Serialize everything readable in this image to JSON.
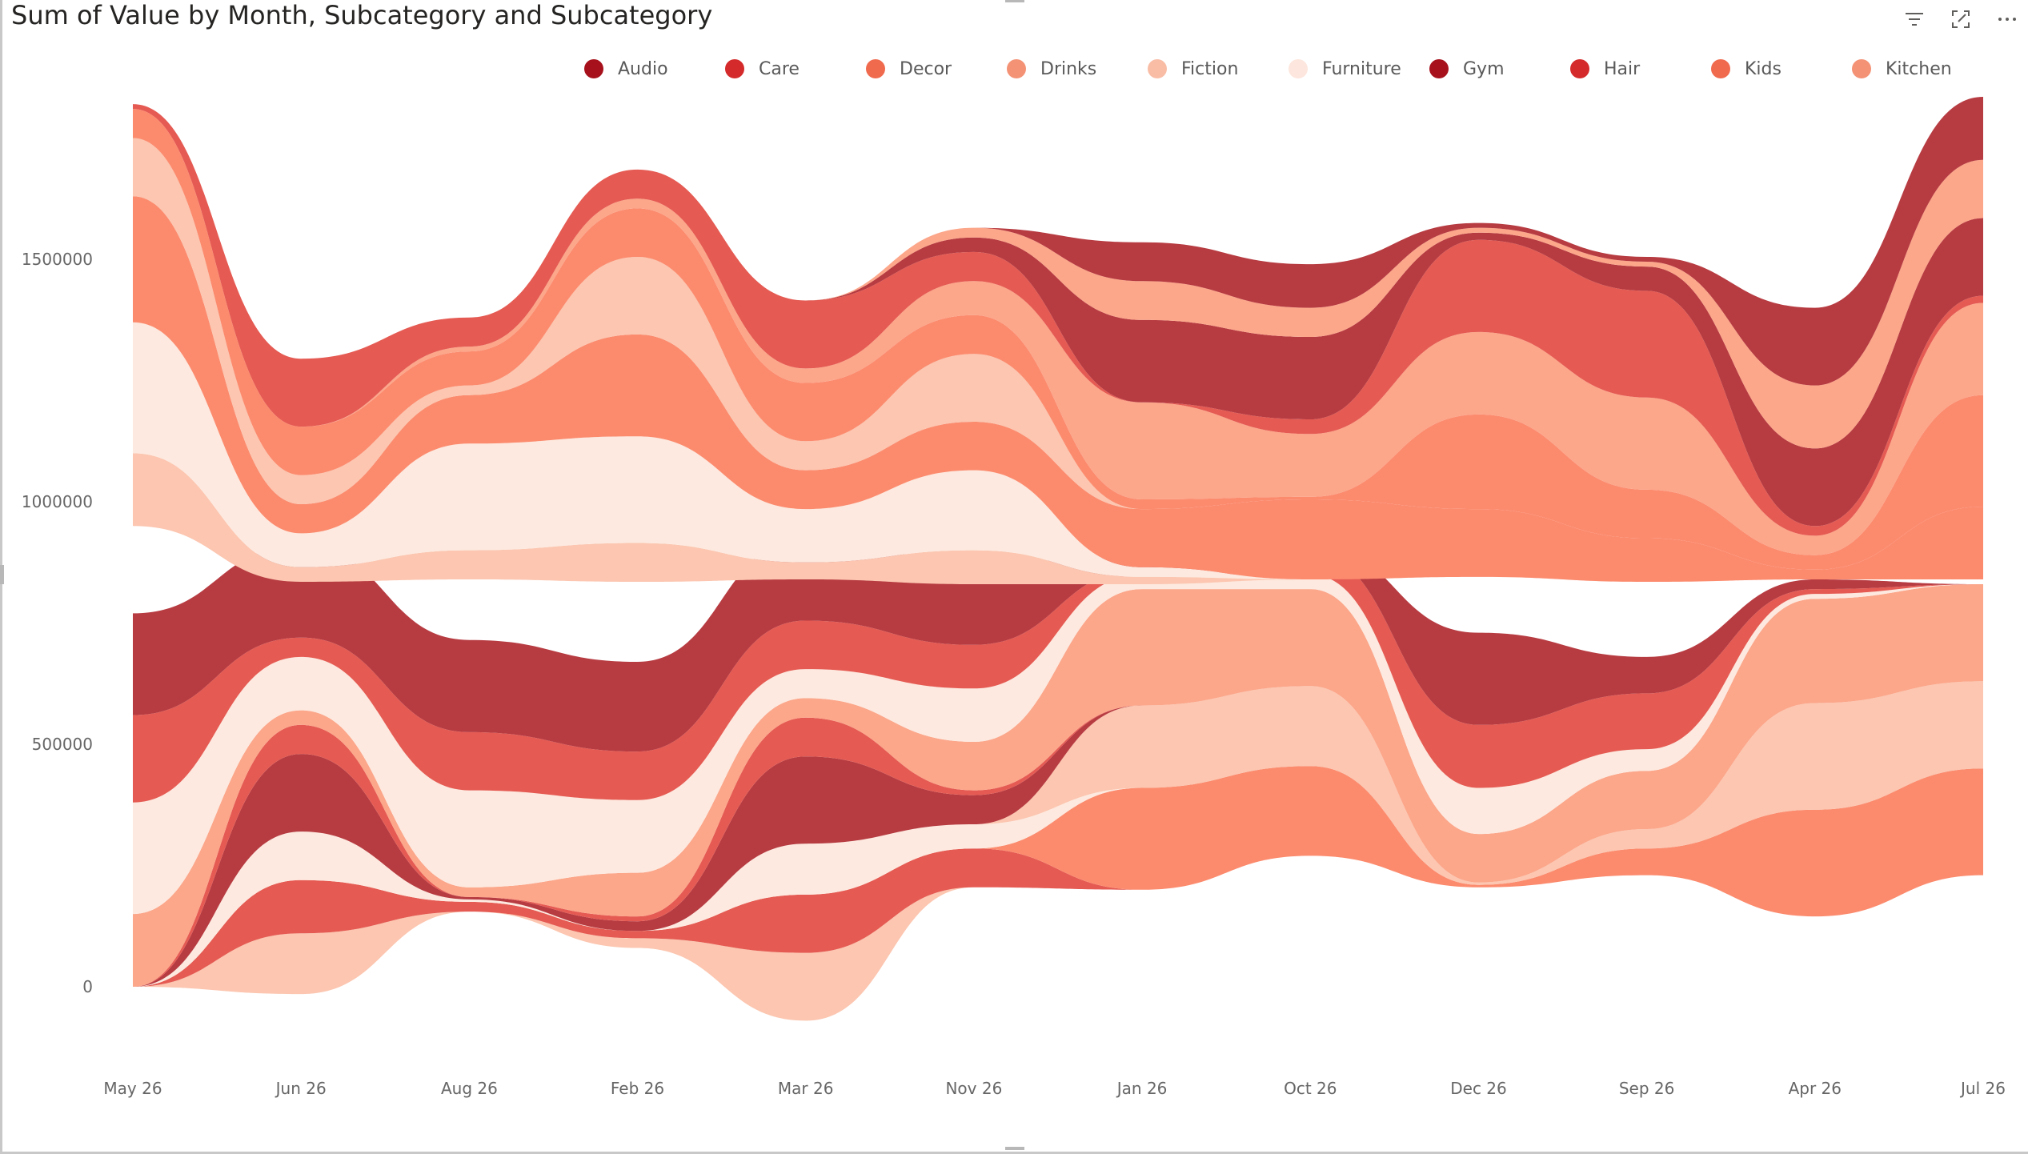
{
  "title": "Sum of Value by Month, Subcategory and Subcategory",
  "header_icons": [
    "filter-icon",
    "focus-mode-icon",
    "more-options-icon"
  ],
  "chart_data": {
    "type": "area",
    "style": "ribbon",
    "title": "Sum of Value by Month, Subcategory and Subcategory",
    "xlabel": "",
    "ylabel": "",
    "y_ticks": [
      "0",
      "500000",
      "1000000",
      "1500000"
    ],
    "ylim": [
      -100000,
      1850000
    ],
    "categories": [
      "May 26",
      "Jun 26",
      "Aug 26",
      "Feb 26",
      "Mar 26",
      "Nov 26",
      "Jan 26",
      "Oct 26",
      "Dec 26",
      "Sep 26",
      "Apr 26",
      "Jul 26"
    ],
    "legend": {
      "position": "top",
      "entries": [
        {
          "name": "Audio",
          "color": "#a6111c"
        },
        {
          "name": "Care",
          "color": "#d42a2b"
        },
        {
          "name": "Decor",
          "color": "#f06a4e"
        },
        {
          "name": "Drinks",
          "color": "#f49275"
        },
        {
          "name": "Fiction",
          "color": "#f9bda6"
        },
        {
          "name": "Furniture",
          "color": "#fde6dd"
        },
        {
          "name": "Gym",
          "color": "#a6111c"
        },
        {
          "name": "Hair",
          "color": "#d42a2b"
        },
        {
          "name": "Kids",
          "color": "#f06a4e"
        },
        {
          "name": "Kitchen",
          "color": "#f49275"
        }
      ]
    },
    "grid": false,
    "upper_band": {
      "baseline": [
        950000,
        835000,
        840000,
        835000,
        840000,
        830000,
        830000,
        840000,
        845000,
        835000,
        840000,
        840000
      ],
      "series": [
        {
          "color": "#fcc6b0",
          "values": [
            150000,
            30000,
            60000,
            80000,
            35000,
            70000,
            15000,
            0,
            0,
            0,
            0,
            0
          ]
        },
        {
          "color": "#fde9df",
          "values": [
            270000,
            70000,
            220000,
            220000,
            110000,
            165000,
            20000,
            0,
            0,
            0,
            0,
            0
          ]
        },
        {
          "color": "#fc8b6e",
          "values": [
            260000,
            60000,
            100000,
            210000,
            80000,
            100000,
            120000,
            165000,
            140000,
            90000,
            20000,
            150000
          ]
        },
        {
          "color": "#fcc6b0",
          "values": [
            120000,
            60000,
            20000,
            160000,
            60000,
            140000,
            0,
            0,
            0,
            0,
            0,
            0
          ]
        },
        {
          "color": "#fc8b6e",
          "values": [
            60000,
            100000,
            70000,
            100000,
            120000,
            80000,
            20000,
            5000,
            195000,
            100000,
            30000,
            230000
          ]
        },
        {
          "color": "#fca68a",
          "values": [
            0,
            0,
            10000,
            20000,
            30000,
            70000,
            200000,
            130000,
            170000,
            190000,
            40000,
            190000
          ]
        },
        {
          "color": "#e55b53",
          "values": [
            10000,
            140000,
            60000,
            60000,
            140000,
            60000,
            0,
            30000,
            190000,
            220000,
            20000,
            15000
          ]
        },
        {
          "color": "#b73c42",
          "values": [
            0,
            0,
            0,
            0,
            0,
            30000,
            170000,
            170000,
            15000,
            50000,
            160000,
            160000
          ]
        },
        {
          "color": "#fca68a",
          "values": [
            0,
            0,
            0,
            0,
            0,
            20000,
            80000,
            60000,
            10000,
            10000,
            130000,
            120000
          ]
        },
        {
          "color": "#b73c42",
          "values": [
            0,
            0,
            0,
            0,
            0,
            0,
            80000,
            90000,
            10000,
            10000,
            160000,
            130000
          ]
        }
      ]
    },
    "lower_band": {
      "baseline": [
        0,
        -15000,
        155000,
        80000,
        -70000,
        205000,
        200000,
        270000,
        205000,
        230000,
        145000,
        230000
      ],
      "series": [
        {
          "color": "#fcc6b0",
          "values": [
            0,
            125000,
            0,
            20000,
            140000,
            0,
            0,
            0,
            0,
            0,
            0,
            0
          ]
        },
        {
          "color": "#e55b53",
          "values": [
            0,
            110000,
            20000,
            15000,
            120000,
            80000,
            0,
            0,
            0,
            0,
            0,
            0
          ]
        },
        {
          "color": "#fc8b6e",
          "values": [
            0,
            0,
            0,
            0,
            0,
            0,
            210000,
            185000,
            5000,
            55000,
            220000,
            220000
          ]
        },
        {
          "color": "#fde9df",
          "values": [
            0,
            100000,
            5000,
            0,
            105000,
            50000,
            0,
            0,
            0,
            0,
            0,
            0
          ]
        },
        {
          "color": "#fcc6b0",
          "values": [
            0,
            0,
            0,
            0,
            0,
            0,
            170000,
            165000,
            5000,
            40000,
            220000,
            180000
          ]
        },
        {
          "color": "#b73c42",
          "values": [
            0,
            160000,
            5000,
            20000,
            180000,
            60000,
            0,
            0,
            0,
            0,
            0,
            0
          ]
        },
        {
          "color": "#e55b53",
          "values": [
            0,
            60000,
            0,
            10000,
            80000,
            10000,
            0,
            0,
            0,
            0,
            0,
            0
          ]
        },
        {
          "color": "#fca68a",
          "values": [
            150000,
            30000,
            20000,
            90000,
            40000,
            100000,
            240000,
            200000,
            100000,
            120000,
            215000,
            200000
          ]
        },
        {
          "color": "#fde9df",
          "values": [
            230000,
            110000,
            200000,
            150000,
            60000,
            110000,
            30000,
            30000,
            95000,
            45000,
            10000,
            0
          ]
        },
        {
          "color": "#e55b53",
          "values": [
            180000,
            40000,
            120000,
            100000,
            100000,
            90000,
            10000,
            45000,
            130000,
            115000,
            10000,
            0
          ]
        },
        {
          "color": "#b73c42",
          "values": [
            210000,
            190000,
            190000,
            185000,
            170000,
            170000,
            25000,
            20000,
            190000,
            75000,
            20000,
            0
          ]
        }
      ]
    }
  }
}
